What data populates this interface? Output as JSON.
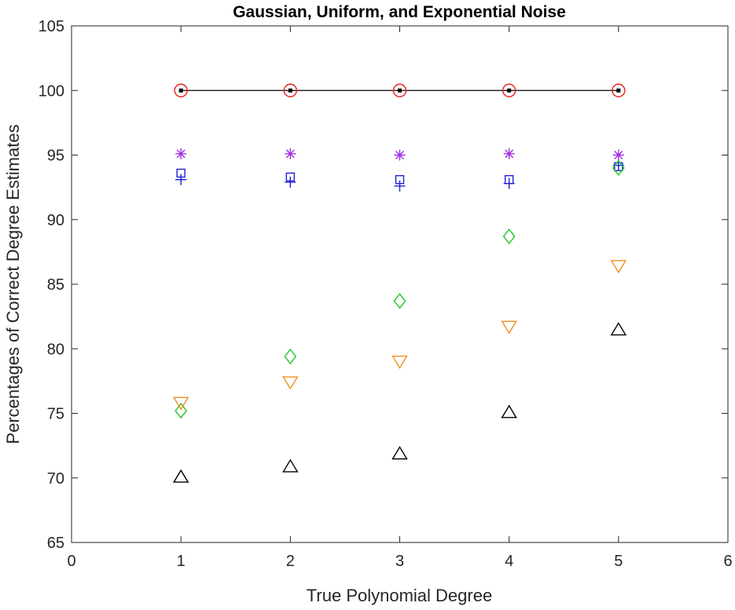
{
  "chart_data": {
    "type": "scatter",
    "title": "Gaussian, Uniform, and Exponential Noise",
    "xlabel": "True Polynomial Degree",
    "ylabel": "Percentages of Correct Degree Estimates",
    "xlim": [
      0,
      6
    ],
    "ylim": [
      65,
      105
    ],
    "xticks": [
      0,
      1,
      2,
      3,
      4,
      5,
      6
    ],
    "yticks": [
      65,
      70,
      75,
      80,
      85,
      90,
      95,
      100,
      105
    ],
    "grid": false,
    "legend": "none",
    "series": [
      {
        "marker": "circle",
        "color": "#e8201c",
        "line": true,
        "line_color": "#000000",
        "x": [
          1,
          2,
          3,
          4,
          5
        ],
        "y": [
          100,
          100,
          100,
          100,
          100
        ]
      },
      {
        "marker": "asterisk",
        "color": "#a030e0",
        "x": [
          1,
          2,
          3,
          4,
          5
        ],
        "y": [
          95.1,
          95.1,
          95.0,
          95.1,
          95.0
        ]
      },
      {
        "marker": "square",
        "color": "#1f1fd8",
        "x": [
          1,
          2,
          3,
          4,
          5
        ],
        "y": [
          93.6,
          93.3,
          93.1,
          93.1,
          94.1
        ]
      },
      {
        "marker": "plus",
        "color": "#1f1fd8",
        "x": [
          1,
          2,
          3,
          4,
          5
        ],
        "y": [
          93.1,
          92.9,
          92.6,
          92.8,
          94.2
        ]
      },
      {
        "marker": "diamond",
        "color": "#22c422",
        "x": [
          1,
          2,
          3,
          4,
          5
        ],
        "y": [
          75.2,
          79.4,
          83.7,
          88.7,
          94.0
        ]
      },
      {
        "marker": "triangle-down",
        "color": "#f29020",
        "x": [
          1,
          2,
          3,
          4,
          5
        ],
        "y": [
          75.8,
          77.4,
          79.0,
          81.7,
          86.4
        ]
      },
      {
        "marker": "triangle-up",
        "color": "#000000",
        "x": [
          1,
          2,
          3,
          4,
          5
        ],
        "y": [
          70.1,
          70.9,
          71.9,
          75.1,
          81.5
        ]
      }
    ]
  }
}
